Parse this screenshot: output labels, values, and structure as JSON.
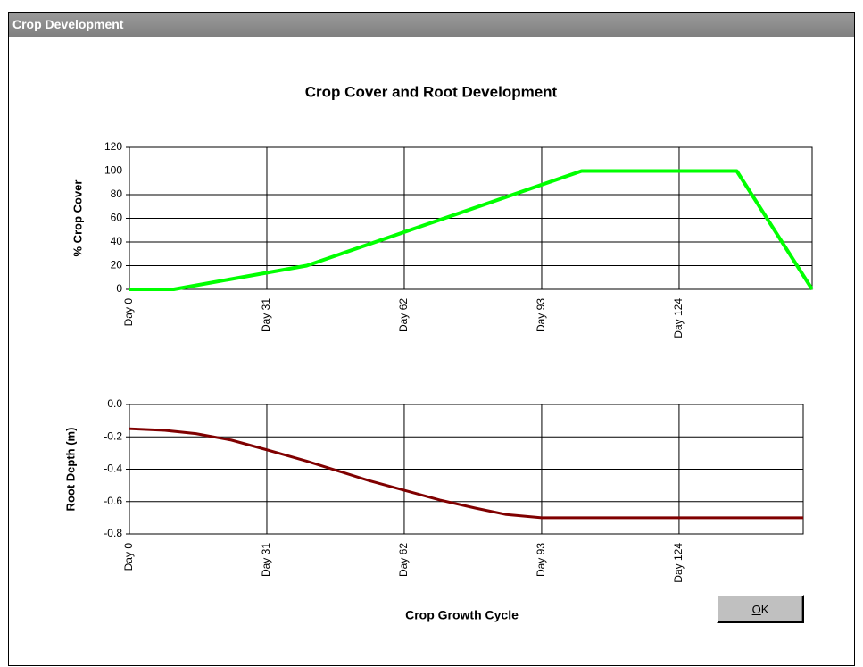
{
  "window": {
    "title": "Crop Development"
  },
  "title": "Crop Cover and Root Development",
  "button": {
    "label": "OK"
  },
  "chart_data": [
    {
      "type": "line",
      "ylabel": "% Crop Cover",
      "xlim": [
        0,
        154
      ],
      "ylim": [
        0,
        120
      ],
      "xticks": [
        {
          "value": 0,
          "label": "Day 0"
        },
        {
          "value": 31,
          "label": "Day 31"
        },
        {
          "value": 62,
          "label": "Day 62"
        },
        {
          "value": 93,
          "label": "Day 93"
        },
        {
          "value": 124,
          "label": "Day 124"
        }
      ],
      "yticks": [
        0,
        20,
        40,
        60,
        80,
        100,
        120
      ],
      "grid": true,
      "series": [
        {
          "name": "Crop Cover",
          "color": "#00ff00",
          "x": [
            0,
            10,
            40,
            102,
            137,
            154
          ],
          "values": [
            0,
            0,
            20,
            100,
            100,
            0
          ]
        }
      ]
    },
    {
      "type": "line",
      "ylabel": "Root Depth (m)",
      "xlabel": "Crop Growth Cycle",
      "xlim": [
        0,
        152
      ],
      "ylim": [
        -0.8,
        0
      ],
      "xticks": [
        {
          "value": 0,
          "label": "Day 0"
        },
        {
          "value": 31,
          "label": "Day 31"
        },
        {
          "value": 62,
          "label": "Day 62"
        },
        {
          "value": 93,
          "label": "Day 93"
        },
        {
          "value": 124,
          "label": "Day 124"
        }
      ],
      "yticks": [
        {
          "value": 0,
          "label": "0.0"
        },
        -0.2,
        -0.4,
        -0.6,
        -0.8
      ],
      "grid": true,
      "series": [
        {
          "name": "Root Depth",
          "color": "#800000",
          "x": [
            0,
            8,
            15,
            23,
            31,
            40,
            47,
            54,
            62,
            70,
            78,
            85,
            93,
            100,
            124,
            152
          ],
          "values": [
            -0.15,
            -0.16,
            -0.18,
            -0.22,
            -0.28,
            -0.35,
            -0.41,
            -0.47,
            -0.53,
            -0.59,
            -0.64,
            -0.68,
            -0.7,
            -0.7,
            -0.7,
            -0.7
          ]
        }
      ]
    }
  ]
}
